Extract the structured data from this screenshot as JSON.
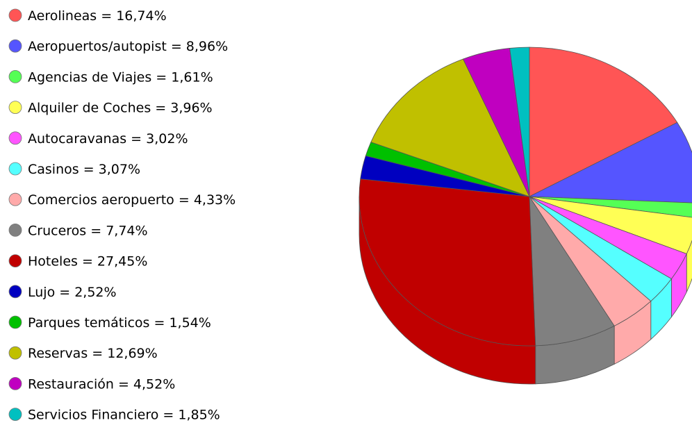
{
  "chart_data": {
    "type": "pie3d",
    "categories": [
      "Aerolineas",
      "Aeropuertos/autopist",
      "Agencias de Viajes",
      "Alquiler de Coches",
      "Autocaravanas",
      "Casinos",
      "Comercios aeropuerto",
      "Cruceros",
      "Hoteles",
      "Lujo",
      "Parques temáticos",
      "Reservas",
      "Restauración",
      "Servicios Financiero"
    ],
    "values": [
      16.74,
      8.96,
      1.61,
      3.96,
      3.02,
      3.07,
      4.33,
      7.74,
      27.45,
      2.52,
      1.54,
      12.69,
      4.52,
      1.85
    ],
    "value_labels": [
      "16,74%",
      "8,96%",
      "1,61%",
      "3,96%",
      "3,02%",
      "3,07%",
      "4,33%",
      "7,74%",
      "27,45%",
      "2,52%",
      "1,54%",
      "12,69%",
      "4,52%",
      "1,85%"
    ],
    "label_separator": " = ",
    "colors": [
      "#ff5555",
      "#5555ff",
      "#55ff55",
      "#ffff55",
      "#ff55ff",
      "#55ffff",
      "#ffaaaa",
      "#808080",
      "#c00000",
      "#0000c0",
      "#00c000",
      "#c0c000",
      "#c000c0",
      "#00c0c0"
    ],
    "legend": "left"
  }
}
